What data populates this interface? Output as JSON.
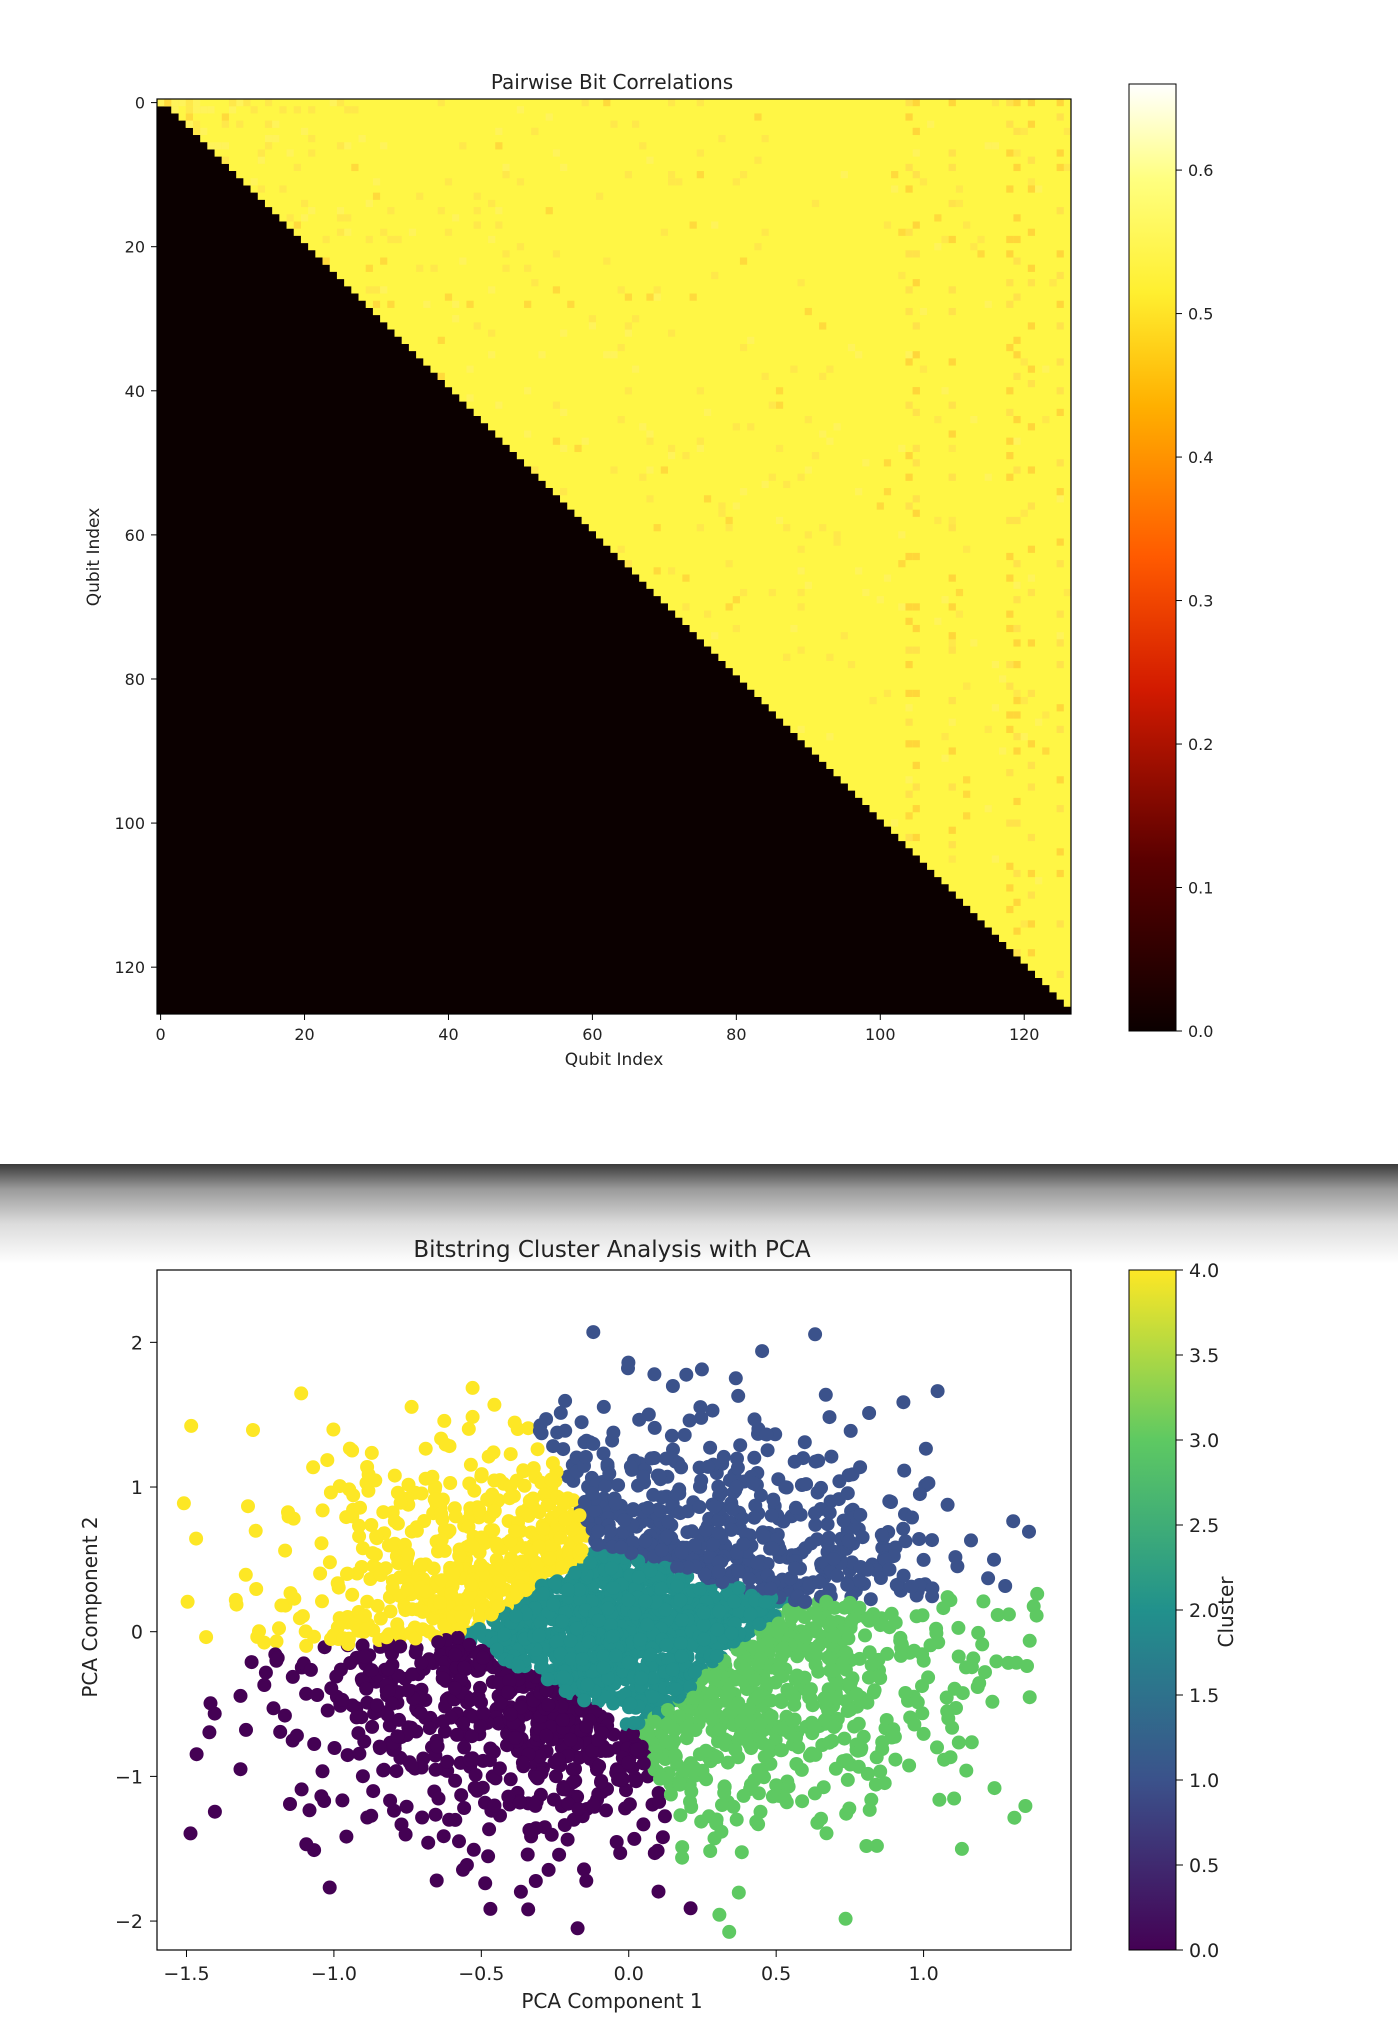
{
  "heatmap": {
    "title": "Pairwise Bit Correlations",
    "xlabel": "Qubit Index",
    "ylabel": "Qubit Index",
    "n": 127,
    "x_ticks": [
      "0",
      "20",
      "40",
      "60",
      "80",
      "100",
      "120"
    ],
    "y_ticks": [
      "0",
      "20",
      "40",
      "60",
      "80",
      "100",
      "120"
    ],
    "colorbar_ticks": [
      "0.0",
      "0.1",
      "0.2",
      "0.3",
      "0.4",
      "0.5",
      "0.6"
    ],
    "vmin": 0.0,
    "vmax": 0.66,
    "colormap": "hot",
    "upper_value": 0.5,
    "lower_value": 0.0
  },
  "scatter": {
    "title": "Bitstring Cluster Analysis with PCA",
    "xlabel": "PCA Component 1",
    "ylabel": "PCA Component 2",
    "x_ticks": [
      "−1.5",
      "−1.0",
      "−0.5",
      "0.0",
      "0.5",
      "1.0"
    ],
    "y_ticks": [
      "−2",
      "−1",
      "0",
      "1",
      "2"
    ],
    "colorbar_label": "Cluster",
    "colorbar_ticks": [
      "0.0",
      "0.5",
      "1.0",
      "1.5",
      "2.0",
      "2.5",
      "3.0",
      "3.5",
      "4.0"
    ],
    "colormap": "viridis"
  },
  "chart_data": [
    {
      "type": "heatmap",
      "title": "Pairwise Bit Correlations",
      "xlabel": "Qubit Index",
      "ylabel": "Qubit Index",
      "xlim": [
        0,
        126
      ],
      "ylim": [
        126,
        0
      ],
      "description_values": {
        "upper_triangle_approx": 0.5,
        "lower_triangle": 0.0
      },
      "colorbar": {
        "min": 0.0,
        "max": 0.66,
        "ticks": [
          0.0,
          0.1,
          0.2,
          0.3,
          0.4,
          0.5,
          0.6
        ]
      }
    },
    {
      "type": "scatter",
      "title": "Bitstring Cluster Analysis with PCA",
      "xlabel": "PCA Component 1",
      "ylabel": "PCA Component 2",
      "xlim": [
        -1.6,
        1.5
      ],
      "ylim": [
        -2.2,
        2.5
      ],
      "colorbar": {
        "label": "Cluster",
        "min": 0.0,
        "max": 4.0,
        "ticks": [
          0.0,
          0.5,
          1.0,
          1.5,
          2.0,
          2.5,
          3.0,
          3.5,
          4.0
        ]
      },
      "series": [
        {
          "cluster": 0,
          "color": "#440154",
          "center": [
            -0.6,
            -0.6
          ]
        },
        {
          "cluster": 1,
          "color": "#3b528b",
          "center": [
            0.5,
            0.8
          ]
        },
        {
          "cluster": 2,
          "color": "#21918c",
          "center": [
            0.0,
            -0.05
          ]
        },
        {
          "cluster": 3,
          "color": "#5ec962",
          "center": [
            0.6,
            -0.4
          ]
        },
        {
          "cluster": 4,
          "color": "#fde725",
          "center": [
            -0.75,
            0.5
          ]
        }
      ]
    }
  ]
}
